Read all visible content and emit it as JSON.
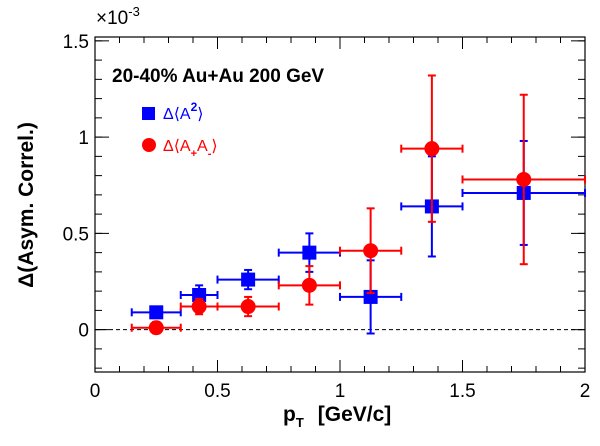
{
  "chart_data": {
    "type": "scatter",
    "title": "",
    "annotation": "20-40% Au+Au 200 GeV",
    "xlabel": "p",
    "xlabel_sub": "T",
    "xlabel_unit": "[GeV/c]",
    "ylabel": "Δ(Asym. Correl.)",
    "y_multiplier": "×10",
    "y_multiplier_exp": "-3",
    "xlim": [
      0,
      2
    ],
    "ylim": [
      -0.00022,
      0.00152
    ],
    "x_ticks": [
      {
        "value": 0,
        "label": "0"
      },
      {
        "value": 0.5,
        "label": "0.5"
      },
      {
        "value": 1,
        "label": "1"
      },
      {
        "value": 1.5,
        "label": "1.5"
      },
      {
        "value": 2,
        "label": "2"
      }
    ],
    "y_ticks": [
      {
        "value": 0,
        "label": "0"
      },
      {
        "value": 0.0005,
        "label": "0.5"
      },
      {
        "value": 0.001,
        "label": "1"
      },
      {
        "value": 0.0015,
        "label": "1.5"
      }
    ],
    "grid": false,
    "legend_position": "top-left",
    "zero_line": true,
    "series": [
      {
        "name": "Δ⟨A²⟩",
        "legend": {
          "pre": "Δ⟨A",
          "sup": "2",
          "post": "⟩"
        },
        "color": "#0000ff",
        "marker": "square",
        "points": [
          {
            "x": 0.25,
            "y": 9e-05,
            "xerr": 0.1,
            "yerr": 3e-05
          },
          {
            "x": 0.425,
            "y": 0.00018,
            "xerr": 0.075,
            "yerr": 5e-05
          },
          {
            "x": 0.625,
            "y": 0.00026,
            "xerr": 0.125,
            "yerr": 5e-05
          },
          {
            "x": 0.875,
            "y": 0.0004,
            "xerr": 0.125,
            "yerr": 0.0001
          },
          {
            "x": 1.125,
            "y": 0.00017,
            "xerr": 0.125,
            "yerr": 0.00019
          },
          {
            "x": 1.375,
            "y": 0.00064,
            "xerr": 0.125,
            "yerr": 0.00026
          },
          {
            "x": 1.75,
            "y": 0.00071,
            "xerr": 0.25,
            "yerr": 0.00027
          }
        ]
      },
      {
        "name": "Δ⟨A+A-⟩",
        "legend": {
          "pre": "Δ⟨A",
          "sub1": "+",
          "mid": "A",
          "sub2": "-",
          "post": "⟩"
        },
        "color": "#ff0000",
        "marker": "circle",
        "points": [
          {
            "x": 0.25,
            "y": 1e-05,
            "xerr": 0.1,
            "yerr": 3e-05
          },
          {
            "x": 0.425,
            "y": 0.00012,
            "xerr": 0.075,
            "yerr": 4e-05
          },
          {
            "x": 0.625,
            "y": 0.00012,
            "xerr": 0.125,
            "yerr": 5e-05
          },
          {
            "x": 0.875,
            "y": 0.00023,
            "xerr": 0.125,
            "yerr": 0.0001
          },
          {
            "x": 1.125,
            "y": 0.00041,
            "xerr": 0.125,
            "yerr": 0.00022
          },
          {
            "x": 1.375,
            "y": 0.00094,
            "xerr": 0.125,
            "yerr": 0.00038
          },
          {
            "x": 1.75,
            "y": 0.00078,
            "xerr": 0.25,
            "yerr": 0.00044
          }
        ]
      }
    ]
  }
}
